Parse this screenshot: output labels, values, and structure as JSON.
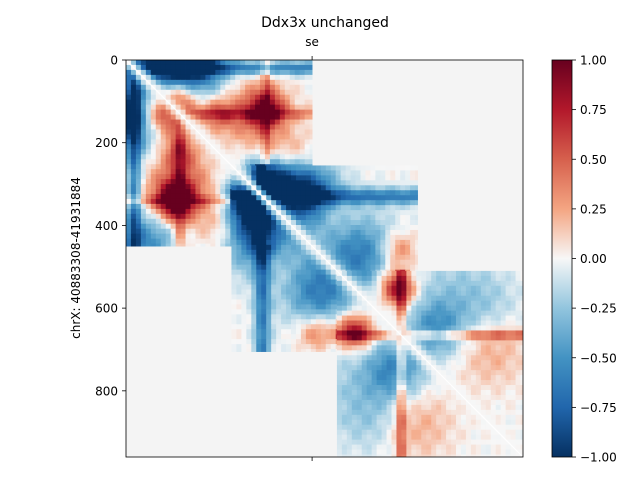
{
  "chart_data": {
    "type": "heatmap",
    "title": "Ddx3x unchanged",
    "top_tick_label": "se",
    "xlabel": "",
    "ylabel": "chrX: 40883308-41931884",
    "y_range": [
      0,
      960
    ],
    "x_range": [
      0,
      960
    ],
    "y_ticks": [
      0,
      200,
      400,
      600,
      800
    ],
    "y_tick_labels": [
      "0",
      "200",
      "400",
      "600",
      "800"
    ],
    "colormap": "RdBu_r",
    "color_range": [
      -1.0,
      1.0
    ],
    "colorbar_ticks": [
      1.0,
      0.75,
      0.5,
      0.25,
      0.0,
      -0.25,
      -0.5,
      -0.75,
      -1.0
    ],
    "colorbar_tick_labels": [
      "1.00",
      "0.75",
      "0.50",
      "0.25",
      "0.00",
      "−0.25",
      "−0.50",
      "−0.75",
      "−1.00"
    ],
    "background_value_color": "#f4f4f4",
    "blocks": [
      {
        "name": "block-1",
        "start": 0,
        "end": 450
      },
      {
        "name": "block-2",
        "start": 255,
        "end": 705
      },
      {
        "name": "block-3",
        "start": 510,
        "end": 960
      }
    ],
    "features": [
      {
        "x": 130,
        "y": 85,
        "r": 40,
        "v": 0.9
      },
      {
        "x": 85,
        "y": 130,
        "r": 40,
        "v": 0.9
      },
      {
        "x": 120,
        "y": 340,
        "r": 30,
        "v": 1.0
      },
      {
        "x": 340,
        "y": 120,
        "r": 30,
        "v": 0.7
      },
      {
        "x": 130,
        "y": 310,
        "r": 55,
        "v": 0.55
      },
      {
        "x": 310,
        "y": 130,
        "r": 55,
        "v": 0.45
      },
      {
        "x": 130,
        "y": 220,
        "r": 30,
        "v": 0.45
      },
      {
        "x": 220,
        "y": 130,
        "r": 30,
        "v": 0.45
      },
      {
        "x": 230,
        "y": 400,
        "r": 40,
        "v": 0.25
      },
      {
        "x": 400,
        "y": 230,
        "r": 40,
        "v": 0.25
      },
      {
        "x": 20,
        "y": 140,
        "r": 55,
        "v": -0.85
      },
      {
        "x": 140,
        "y": 20,
        "r": 55,
        "v": -0.85
      },
      {
        "x": 120,
        "y": 20,
        "r": 70,
        "v": -0.7
      },
      {
        "x": 50,
        "y": 440,
        "r": 50,
        "v": -0.55
      },
      {
        "x": 340,
        "y": 300,
        "r": 40,
        "v": -0.9
      },
      {
        "x": 300,
        "y": 340,
        "r": 40,
        "v": -0.9
      },
      {
        "x": 390,
        "y": 300,
        "r": 40,
        "v": -0.35
      },
      {
        "x": 300,
        "y": 390,
        "r": 40,
        "v": -0.35
      },
      {
        "x": 450,
        "y": 320,
        "r": 55,
        "v": -0.3
      },
      {
        "x": 330,
        "y": 440,
        "r": 60,
        "v": -0.75
      },
      {
        "x": 440,
        "y": 330,
        "r": 50,
        "v": -0.7
      },
      {
        "x": 540,
        "y": 440,
        "r": 70,
        "v": -0.3
      },
      {
        "x": 440,
        "y": 540,
        "r": 60,
        "v": -0.3
      },
      {
        "x": 490,
        "y": 360,
        "r": 45,
        "v": 0.3
      },
      {
        "x": 360,
        "y": 490,
        "r": 45,
        "v": 0.3
      },
      {
        "x": 460,
        "y": 660,
        "r": 30,
        "v": 0.45
      },
      {
        "x": 660,
        "y": 460,
        "r": 30,
        "v": 0.45
      },
      {
        "x": 560,
        "y": 660,
        "r": 28,
        "v": 0.55
      },
      {
        "x": 660,
        "y": 560,
        "r": 28,
        "v": 0.55
      },
      {
        "x": 650,
        "y": 540,
        "r": 30,
        "v": 0.4
      },
      {
        "x": 540,
        "y": 650,
        "r": 30,
        "v": 0.4
      },
      {
        "x": 480,
        "y": 580,
        "r": 55,
        "v": -0.35
      },
      {
        "x": 580,
        "y": 480,
        "r": 55,
        "v": -0.35
      },
      {
        "x": 650,
        "y": 750,
        "r": 50,
        "v": -0.5
      },
      {
        "x": 750,
        "y": 650,
        "r": 50,
        "v": -0.45
      },
      {
        "x": 700,
        "y": 880,
        "r": 60,
        "v": 0.25
      },
      {
        "x": 880,
        "y": 700,
        "r": 60,
        "v": 0.25
      },
      {
        "x": 560,
        "y": 800,
        "r": 80,
        "v": -0.2
      },
      {
        "x": 800,
        "y": 560,
        "r": 80,
        "v": -0.2
      },
      {
        "x": 880,
        "y": 600,
        "r": 55,
        "v": -0.15
      },
      {
        "x": 600,
        "y": 880,
        "r": 55,
        "v": -0.15
      }
    ],
    "bands": [
      {
        "axis": "x",
        "at": 130,
        "w": 10,
        "v": 0.35,
        "from": 150,
        "to": 450
      },
      {
        "axis": "y",
        "at": 130,
        "w": 10,
        "v": 0.35,
        "from": 150,
        "to": 450
      },
      {
        "axis": "x",
        "at": 340,
        "w": 8,
        "v": 0.3,
        "from": 0,
        "to": 450
      },
      {
        "axis": "y",
        "at": 340,
        "w": 8,
        "v": 0.3,
        "from": 0,
        "to": 450
      },
      {
        "axis": "x",
        "at": 665,
        "w": 8,
        "v": 0.45,
        "from": 510,
        "to": 960
      },
      {
        "axis": "y",
        "at": 665,
        "w": 8,
        "v": 0.45,
        "from": 510,
        "to": 960
      },
      {
        "axis": "x",
        "at": 330,
        "w": 14,
        "v": -0.6,
        "from": 255,
        "to": 705
      },
      {
        "axis": "y",
        "at": 330,
        "w": 14,
        "v": -0.6,
        "from": 255,
        "to": 705
      },
      {
        "axis": "x",
        "at": 20,
        "w": 12,
        "v": -0.6,
        "from": 0,
        "to": 450
      },
      {
        "axis": "y",
        "at": 20,
        "w": 12,
        "v": -0.6,
        "from": 0,
        "to": 450
      }
    ]
  }
}
